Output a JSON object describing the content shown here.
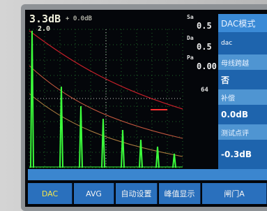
{
  "readout": {
    "gain": "3.3dB",
    "gain_step": "+ 0.0dB",
    "range": "2.0"
  },
  "measurements": [
    {
      "label": "Sa",
      "value": "0.5"
    },
    {
      "label": "Da",
      "value": "0.5"
    },
    {
      "label": "Pa",
      "value": "0.00"
    }
  ],
  "marker": "64",
  "side_menu": [
    {
      "label": "DAC模式",
      "value": "dac"
    },
    {
      "label": "母线跨越",
      "value": "否"
    },
    {
      "label": "补偿",
      "value": "0.0dB"
    },
    {
      "label": "测试点评",
      "value": "-0.3dB"
    }
  ],
  "bottom_menu": [
    "DAC",
    "AVG",
    "自动设置",
    "峰值显示",
    "闸门A"
  ]
}
